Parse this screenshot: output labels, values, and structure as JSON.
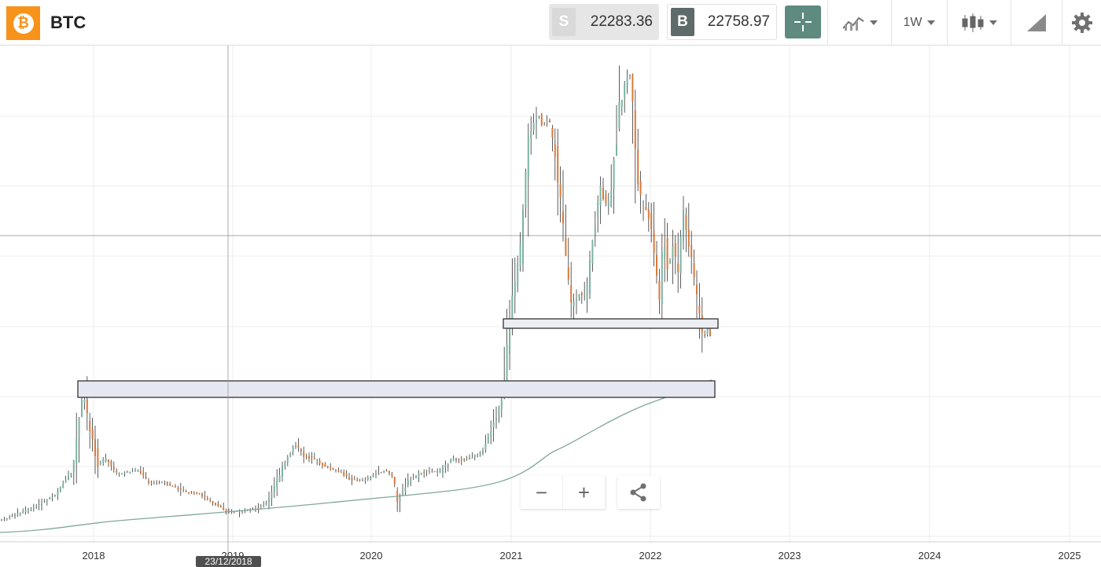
{
  "header": {
    "symbol": "BTC",
    "logo_icon": "bitcoin-icon",
    "sell_tag": "S",
    "sell_price": "22283.36",
    "buy_tag": "B",
    "buy_price": "22758.97",
    "interval": "1W",
    "tools": [
      "crosshair-icon",
      "chart-style-icon",
      "interval-dropdown",
      "candlestick-icon",
      "drawing-tools-icon",
      "gear-icon"
    ]
  },
  "chart": {
    "x_axis_years": [
      "2018",
      "2019",
      "2020",
      "2021",
      "2022",
      "2023",
      "2024",
      "2025"
    ],
    "crosshair_date": "23/12/2018"
  },
  "controls": {
    "zoom_out_label": "−",
    "zoom_in_label": "+",
    "share_icon": "share-icon"
  },
  "colors": {
    "bull": "#7bb3a5",
    "bear": "#d9793a",
    "accent": "#5e8a80",
    "bitcoin": "#f7931a"
  }
}
